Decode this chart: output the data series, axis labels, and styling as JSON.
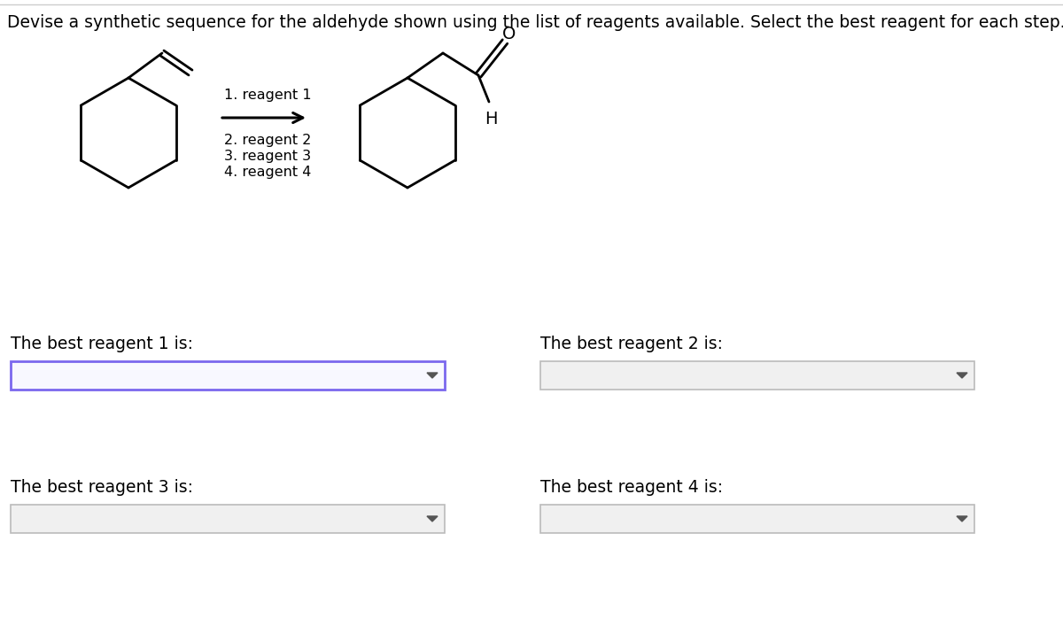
{
  "title": "Devise a synthetic sequence for the aldehyde shown using the list of reagents available. Select the best reagent for each step.",
  "title_fontsize": 13.5,
  "title_color": "#000000",
  "background_color": "#ffffff",
  "reagent_text": [
    "1. reagent 1",
    "2. reagent 2",
    "3. reagent 3",
    "4. reagent 4"
  ],
  "label_reagent1": "The best reagent 1 is:",
  "label_reagent2": "The best reagent 2 is:",
  "label_reagent3": "The best reagent 3 is:",
  "label_reagent4": "The best reagent 4 is:",
  "dropdown_border_color1": "#7b68ee",
  "dropdown_border_color2": "#bbbbbb",
  "dropdown_fill1": "#f8f8ff",
  "dropdown_fill2": "#f0f0f0",
  "text_color": "#000000",
  "label_fontsize": 13.5,
  "line_color": "#000000",
  "line_width": 2.0
}
